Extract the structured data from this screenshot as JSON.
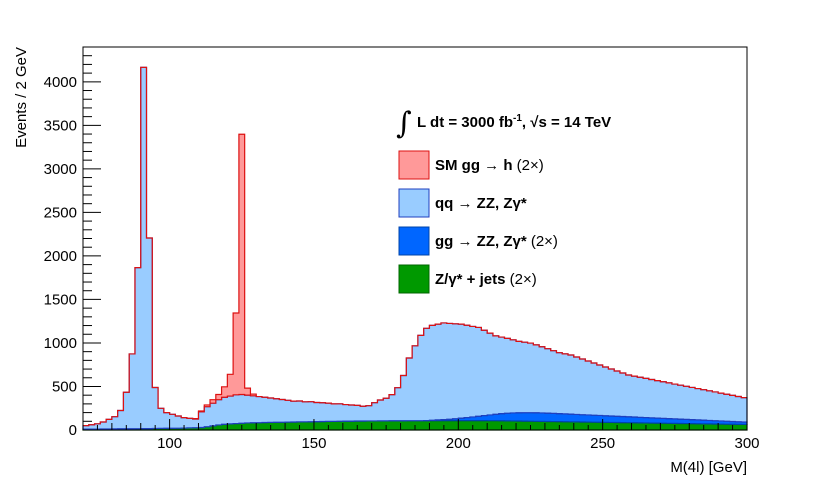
{
  "chart_data": {
    "type": "area",
    "style": "stacked-histogram",
    "bin_width": 2,
    "x_start": 70,
    "xlim": [
      70,
      300
    ],
    "ylim": [
      0,
      4400
    ],
    "xlabel": "M(4l) [GeV]",
    "ylabel": "Events / 2 GeV",
    "x_ticks": [
      100,
      150,
      200,
      250,
      300
    ],
    "y_ticks": [
      0,
      500,
      1000,
      1500,
      2000,
      2500,
      3000,
      3500,
      4000
    ],
    "legend_header": {
      "integral": "∫",
      "lumi_text": "L dt = 3000 fb",
      "lumi_sup": "-1",
      "energy_text": ", √s = 14 TeV"
    },
    "legend_position": "top-right",
    "series": [
      {
        "name_bold": "Z/γ* + jets",
        "name_suffix": " (2×)",
        "color": "#009900",
        "edge": "#006600",
        "values": [
          10,
          10,
          11,
          12,
          12,
          13,
          14,
          14,
          14,
          15,
          16,
          16,
          18,
          19,
          20,
          20,
          21,
          22,
          24,
          26,
          29,
          38,
          48,
          58,
          66,
          70,
          74,
          78,
          81,
          83,
          84,
          86,
          88,
          89,
          90,
          91,
          92,
          93,
          94,
          95,
          96,
          98,
          99,
          100,
          101,
          102,
          102,
          103,
          103,
          104,
          104,
          105,
          105,
          106,
          106,
          106,
          107,
          107,
          107,
          108,
          108,
          108,
          108,
          108,
          108,
          108,
          108,
          108,
          108,
          108,
          107,
          107,
          106,
          105,
          104,
          103,
          102,
          101,
          100,
          99,
          98,
          97,
          96,
          95,
          94,
          93,
          92,
          91,
          90,
          89,
          88,
          87,
          86,
          85,
          84,
          83,
          82,
          81,
          80,
          79,
          78,
          77,
          76,
          75,
          74,
          73,
          72,
          71,
          70,
          69,
          68,
          67,
          66,
          65,
          64
        ]
      },
      {
        "name_bold": "gg → ZZ, Zγ*",
        "name_suffix": " (2×)",
        "color": "#0066ff",
        "edge": "#0044aa",
        "values": [
          0,
          0,
          0,
          0,
          0,
          0,
          0,
          0,
          0,
          0,
          0,
          0,
          0,
          0,
          0,
          0,
          0,
          0,
          0,
          0,
          0,
          0,
          0,
          0,
          0,
          0,
          0,
          0,
          0,
          0,
          0,
          0,
          0,
          0,
          0,
          0,
          0,
          0,
          0,
          0,
          0,
          0,
          0,
          0,
          0,
          0,
          0,
          0,
          0,
          0,
          0,
          0,
          0,
          0,
          0,
          0,
          0,
          0,
          0,
          0,
          4,
          8,
          12,
          16,
          22,
          28,
          35,
          42,
          50,
          58,
          66,
          74,
          82,
          88,
          92,
          95,
          97,
          98,
          98,
          97,
          96,
          94,
          92,
          90,
          88,
          86,
          84,
          82,
          80,
          78,
          76,
          74,
          72,
          70,
          68,
          66,
          64,
          62,
          60,
          58,
          56,
          54,
          52,
          50,
          48,
          46,
          44,
          42,
          40,
          38,
          36,
          34,
          32,
          30,
          28
        ]
      },
      {
        "name_bold": "qq → ZZ, Zγ*",
        "name_suffix": "",
        "color": "#99ccff",
        "edge": "#1f3fbf",
        "values": [
          40,
          50,
          60,
          80,
          110,
          140,
          210,
          420,
          860,
          1850,
          4150,
          2190,
          470,
          230,
          180,
          160,
          140,
          120,
          110,
          100,
          180,
          230,
          260,
          290,
          310,
          320,
          330,
          330,
          320,
          310,
          300,
          290,
          280,
          270,
          260,
          250,
          240,
          240,
          230,
          230,
          220,
          215,
          210,
          200,
          200,
          190,
          185,
          180,
          170,
          175,
          210,
          240,
          260,
          300,
          380,
          520,
          720,
          860,
          980,
          1060,
          1090,
          1100,
          1110,
          1100,
          1090,
          1080,
          1060,
          1040,
          1020,
          980,
          940,
          900,
          880,
          860,
          840,
          820,
          810,
          800,
          780,
          760,
          740,
          720,
          700,
          690,
          680,
          660,
          640,
          620,
          600,
          580,
          560,
          540,
          520,
          500,
          480,
          470,
          460,
          450,
          440,
          430,
          420,
          410,
          400,
          390,
          380,
          370,
          360,
          350,
          340,
          330,
          320,
          310,
          300,
          290,
          280
        ]
      },
      {
        "name_bold": "SM gg → h",
        "name_suffix": " (2×)",
        "color": "#ff9999",
        "edge": "#dd1111",
        "values": [
          0,
          0,
          0,
          0,
          0,
          0,
          0,
          0,
          0,
          0,
          0,
          0,
          0,
          0,
          0,
          0,
          0,
          0,
          0,
          5,
          10,
          20,
          40,
          60,
          120,
          250,
          940,
          2990,
          80,
          20,
          0,
          0,
          0,
          0,
          0,
          0,
          0,
          0,
          0,
          0,
          0,
          0,
          0,
          0,
          0,
          0,
          0,
          0,
          0,
          0,
          0,
          0,
          0,
          0,
          0,
          0,
          0,
          0,
          0,
          0,
          0,
          0,
          0,
          0,
          0,
          0,
          0,
          0,
          0,
          0,
          0,
          0,
          0,
          0,
          0,
          0,
          0,
          0,
          0,
          0,
          0,
          0,
          0,
          0,
          0,
          0,
          0,
          0,
          0,
          0,
          0,
          0,
          0,
          0,
          0,
          0,
          0,
          0,
          0,
          0,
          0,
          0,
          0,
          0,
          0,
          0,
          0,
          0,
          0,
          0,
          0,
          0,
          0,
          0,
          0
        ]
      }
    ]
  }
}
